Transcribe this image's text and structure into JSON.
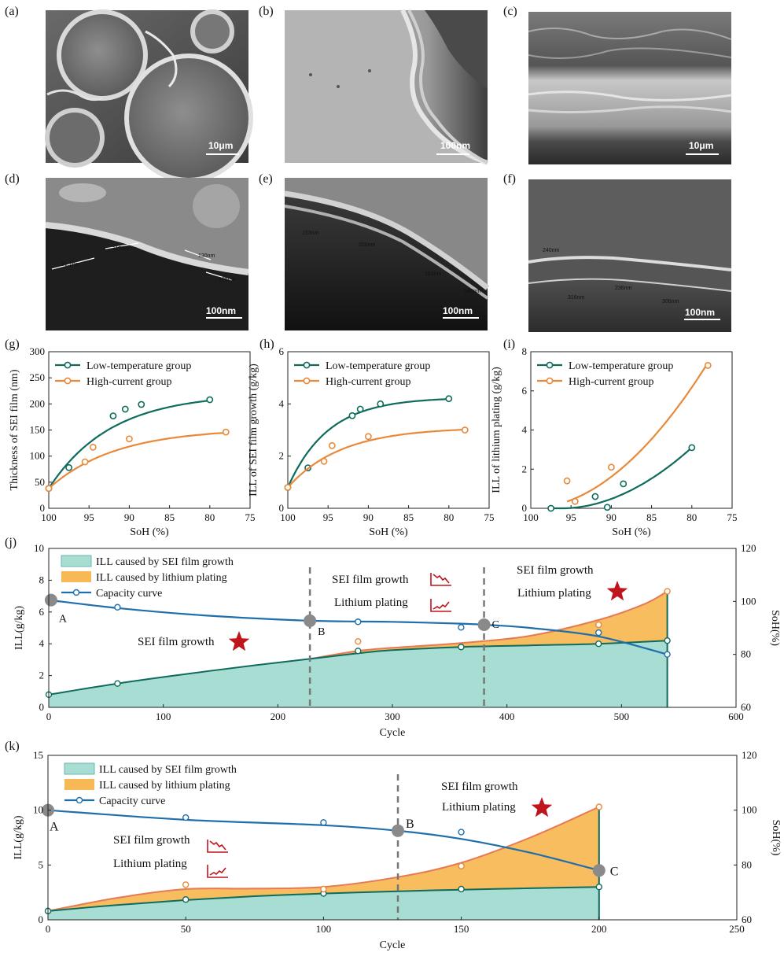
{
  "sem_panels": [
    {
      "id": "a",
      "letter": "(a)",
      "scale": "10μm",
      "style": "cross-section",
      "nm_labels": []
    },
    {
      "id": "b",
      "letter": "(b)",
      "scale": "100nm",
      "style": "edge",
      "nm_labels": []
    },
    {
      "id": "c",
      "letter": "(c)",
      "scale": "10μm",
      "style": "layers",
      "nm_labels": []
    },
    {
      "id": "d",
      "letter": "(d)",
      "scale": "100nm",
      "style": "film",
      "nm_labels": [
        "91.1nm",
        "117nm",
        "130nm",
        "106nm"
      ]
    },
    {
      "id": "e",
      "letter": "(e)",
      "scale": "100nm",
      "style": "film",
      "nm_labels": [
        "153nm",
        "200nm",
        "163nm",
        "140nm"
      ]
    },
    {
      "id": "f",
      "letter": "(f)",
      "scale": "100nm",
      "style": "plain",
      "nm_labels": [
        "240nm",
        "316nm",
        "236nm",
        "306nm"
      ]
    }
  ],
  "colors": {
    "teal": "#0f6b5c",
    "orange": "#e8893a",
    "sei_fill": "#a8ddd3",
    "plating_fill": "#f7b955",
    "capacity": "#1f6fad",
    "marker_gray": "#8a8a8a",
    "dash": "#777777",
    "star": "#c0141c"
  },
  "chart_data": [
    {
      "id": "g",
      "type": "scatter",
      "panel_label": "(g)",
      "xlabel": "SoH (%)",
      "ylabel": "Thickness of SEI film (nm)",
      "xlim": [
        100,
        75
      ],
      "ylim": [
        0,
        300
      ],
      "xticks": [
        100,
        95,
        90,
        85,
        80,
        75
      ],
      "yticks": [
        0,
        50,
        100,
        150,
        200,
        250,
        300
      ],
      "legend": "top-left",
      "series": [
        {
          "name": "Low-temperature group",
          "color": "#0f6b5c",
          "points": [
            [
              100,
              38
            ],
            [
              97.5,
              78
            ],
            [
              92,
              177
            ],
            [
              90.5,
              190
            ],
            [
              88.5,
              199
            ],
            [
              80,
              208
            ]
          ],
          "fit": {
            "k": 0.13,
            "offset": 38,
            "amp": 182
          }
        },
        {
          "name": "High-current group",
          "color": "#e8893a",
          "points": [
            [
              100,
              38
            ],
            [
              95.5,
              89
            ],
            [
              94.5,
              117
            ],
            [
              90,
              133
            ],
            [
              78,
              146
            ]
          ],
          "fit": {
            "k": 0.12,
            "offset": 38,
            "amp": 115
          }
        }
      ]
    },
    {
      "id": "h",
      "type": "scatter",
      "panel_label": "(h)",
      "xlabel": "SoH (%)",
      "ylabel": "ILL of SEI film growth (g/kg)",
      "xlim": [
        100,
        75
      ],
      "ylim": [
        0,
        6
      ],
      "xticks": [
        100,
        95,
        90,
        85,
        80,
        75
      ],
      "yticks": [
        0,
        2,
        4,
        6
      ],
      "legend": "top-left",
      "series": [
        {
          "name": "Low-temperature group",
          "color": "#0f6b5c",
          "points": [
            [
              100,
              0.8
            ],
            [
              97.5,
              1.55
            ],
            [
              92,
              3.55
            ],
            [
              91,
              3.8
            ],
            [
              88.5,
              4.0
            ],
            [
              80,
              4.2
            ]
          ],
          "fit": {
            "k": 0.2,
            "offset": 0.8,
            "amp": 3.45
          }
        },
        {
          "name": "High-current group",
          "color": "#e8893a",
          "points": [
            [
              100,
              0.8
            ],
            [
              95.5,
              1.8
            ],
            [
              94.5,
              2.4
            ],
            [
              90,
              2.75
            ],
            [
              78,
              3.0
            ]
          ],
          "fit": {
            "k": 0.15,
            "offset": 0.8,
            "amp": 2.3
          }
        }
      ]
    },
    {
      "id": "i",
      "type": "scatter",
      "panel_label": "(i)",
      "xlabel": "SoH (%)",
      "ylabel": "ILL of lithium plating (g/kg)",
      "xlim": [
        100,
        75
      ],
      "ylim": [
        0,
        8
      ],
      "xticks": [
        100,
        95,
        90,
        85,
        80,
        75
      ],
      "yticks": [
        0,
        2,
        4,
        6,
        8
      ],
      "legend": "top-left",
      "series": [
        {
          "name": "Low-temperature group",
          "color": "#0f6b5c",
          "points": [
            [
              97.5,
              0.0
            ],
            [
              92,
              0.6
            ],
            [
              90.5,
              0.05
            ],
            [
              88.5,
              1.25
            ],
            [
              80,
              3.1
            ]
          ],
          "fit": {
            "x0": 96,
            "a": 0.016,
            "p": 1.9
          }
        },
        {
          "name": "High-current group",
          "color": "#e8893a",
          "points": [
            [
              95.5,
              1.4
            ],
            [
              94.5,
              0.35
            ],
            [
              90,
              2.1
            ],
            [
              78,
              7.3
            ]
          ],
          "fit": {
            "x0": 100,
            "a": 0.0185,
            "p": 1.94
          }
        }
      ]
    },
    {
      "id": "j",
      "type": "area",
      "panel_label": "(j)",
      "xlabel": "Cycle",
      "ylabel": "ILL(g/kg)",
      "y2label": "SoH(%)",
      "xlim": [
        0,
        600
      ],
      "ylim": [
        0,
        10
      ],
      "y2lim": [
        60,
        120
      ],
      "xticks": [
        0,
        100,
        200,
        300,
        400,
        500,
        600
      ],
      "yticks": [
        0,
        2,
        4,
        6,
        8,
        10
      ],
      "y2ticks": [
        60,
        80,
        100,
        120
      ],
      "legend": [
        "ILL caused by SEI film growth",
        "ILL caused by lithium plating",
        "Capacity curve"
      ],
      "sei_curve": [
        [
          0,
          0.8
        ],
        [
          60,
          1.5
        ],
        [
          120,
          2.1
        ],
        [
          180,
          2.65
        ],
        [
          228,
          3.05
        ],
        [
          270,
          3.4
        ],
        [
          300,
          3.6
        ],
        [
          360,
          3.8
        ],
        [
          420,
          3.9
        ],
        [
          480,
          4.0
        ],
        [
          540,
          4.2
        ]
      ],
      "sei_points": [
        [
          0,
          0.8
        ],
        [
          60,
          1.5
        ],
        [
          270,
          3.55
        ],
        [
          360,
          3.8
        ],
        [
          480,
          4.0
        ],
        [
          540,
          4.2
        ]
      ],
      "total_curve": [
        [
          228,
          3.05
        ],
        [
          270,
          3.55
        ],
        [
          300,
          3.75
        ],
        [
          360,
          4.05
        ],
        [
          420,
          4.5
        ],
        [
          480,
          5.5
        ],
        [
          520,
          6.5
        ],
        [
          540,
          7.3
        ]
      ],
      "plating_points": [
        [
          270,
          4.15
        ],
        [
          480,
          5.2
        ],
        [
          540,
          7.3
        ]
      ],
      "capacity_curve": [
        [
          0,
          100.5
        ],
        [
          60,
          97.5
        ],
        [
          120,
          95.2
        ],
        [
          180,
          93.6
        ],
        [
          228,
          92.7
        ],
        [
          270,
          92.4
        ],
        [
          300,
          92.3
        ],
        [
          360,
          91.6
        ],
        [
          380,
          91.2
        ],
        [
          420,
          90
        ],
        [
          480,
          86.8
        ],
        [
          540,
          80
        ]
      ],
      "capacity_points": [
        [
          60,
          97.8
        ],
        [
          270,
          92.3
        ],
        [
          360,
          90.2
        ],
        [
          480,
          88.2
        ],
        [
          540,
          80
        ]
      ],
      "markers": [
        {
          "label": "A",
          "x": 2,
          "y2": 100.5
        },
        {
          "label": "B",
          "x": 228,
          "y2": 92.7
        },
        {
          "label": "C",
          "x": 380,
          "y2": 91.2
        }
      ],
      "dividers": [
        228,
        380
      ],
      "annotations": {
        "sei_only": "SEI film growth",
        "mid_sei": "SEI film growth",
        "mid_plating": "Lithium plating",
        "late_sei": "SEI film growth",
        "late_plating": "Lithium plating"
      }
    },
    {
      "id": "k",
      "type": "area",
      "panel_label": "(k)",
      "xlabel": "Cycle",
      "ylabel": "ILL(g/kg)",
      "y2label": "SoH(%)",
      "xlim": [
        0,
        250
      ],
      "ylim": [
        0,
        15
      ],
      "y2lim": [
        60,
        120
      ],
      "xticks": [
        0,
        50,
        100,
        150,
        200,
        250
      ],
      "yticks": [
        0,
        5,
        10,
        15
      ],
      "y2ticks": [
        60,
        80,
        100,
        120
      ],
      "legend": [
        "ILL caused by SEI film growth",
        "ILL caused by lithium plating",
        "Capacity curve"
      ],
      "sei_curve": [
        [
          0,
          0.8
        ],
        [
          25,
          1.35
        ],
        [
          50,
          1.8
        ],
        [
          75,
          2.15
        ],
        [
          100,
          2.4
        ],
        [
          127,
          2.6
        ],
        [
          150,
          2.75
        ],
        [
          175,
          2.88
        ],
        [
          200,
          3.0
        ]
      ],
      "sei_points": [
        [
          0,
          0.8
        ],
        [
          50,
          1.85
        ],
        [
          100,
          2.4
        ],
        [
          150,
          2.8
        ],
        [
          200,
          3.0
        ]
      ],
      "total_curve": [
        [
          0,
          0.8
        ],
        [
          25,
          2.0
        ],
        [
          50,
          2.8
        ],
        [
          75,
          2.85
        ],
        [
          100,
          3.0
        ],
        [
          127,
          3.9
        ],
        [
          150,
          5.2
        ],
        [
          175,
          7.5
        ],
        [
          200,
          10.3
        ]
      ],
      "plating_points": [
        [
          50,
          3.2
        ],
        [
          100,
          2.8
        ],
        [
          150,
          4.9
        ],
        [
          200,
          10.3
        ]
      ],
      "capacity_curve": [
        [
          0,
          100
        ],
        [
          50,
          96.5
        ],
        [
          100,
          94.5
        ],
        [
          127,
          92.5
        ],
        [
          150,
          89.5
        ],
        [
          175,
          84.5
        ],
        [
          200,
          78
        ]
      ],
      "capacity_points": [
        [
          50,
          97.3
        ],
        [
          100,
          95.5
        ],
        [
          150,
          92
        ]
      ],
      "markers": [
        {
          "label": "A",
          "x": 0,
          "y2": 100
        },
        {
          "label": "B",
          "x": 127,
          "y2": 92.5
        },
        {
          "label": "C",
          "x": 200,
          "y2": 78
        }
      ],
      "dividers": [
        127
      ],
      "annotations": {
        "early_sei": "SEI film growth",
        "early_plating": "Lithium plating",
        "late_sei": "SEI film growth",
        "late_plating": "Lithium plating"
      }
    }
  ]
}
